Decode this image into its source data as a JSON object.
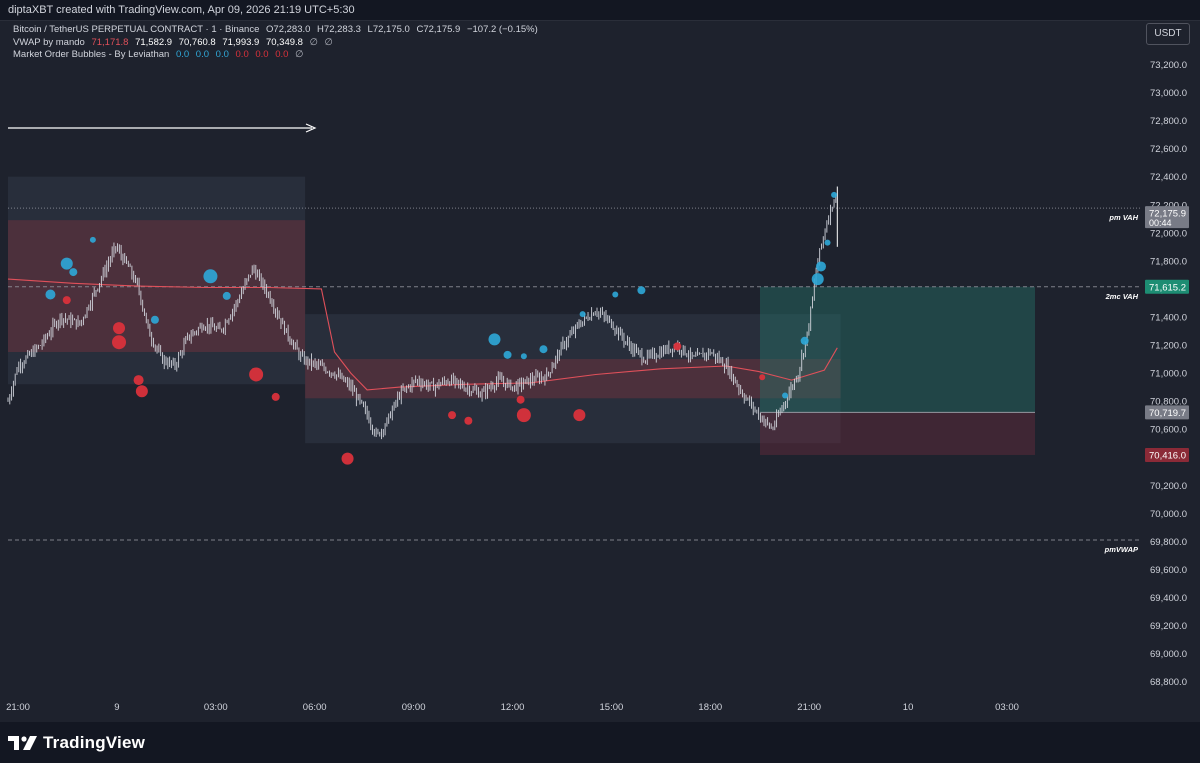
{
  "header": {
    "credit": "diptaXBT created with TradingView.com, Apr 09, 2026 21:19 UTC+5:30"
  },
  "legend": {
    "symbol": {
      "label": "Bitcoin / TetherUS PERPETUAL CONTRACT · 1 · Binance",
      "o_label": "O",
      "o": "72,283.0",
      "h_label": "H",
      "h": "72,283.3",
      "l_label": "L",
      "l": "72,175.0",
      "c_label": "C",
      "c": "72,175.9",
      "change": "−107.2 (−0.15%)"
    },
    "vwap": {
      "label": "VWAP by mando",
      "values": [
        "71,171.8",
        "71,582.9",
        "70,760.8",
        "71,993.9",
        "70,349.8",
        "∅",
        "∅"
      ]
    },
    "bubbles": {
      "label": "Market Order Bubbles - By Leviathan",
      "values": [
        "0.0",
        "0.0",
        "0.0",
        "0.0",
        "0.0",
        "0.0",
        "∅"
      ]
    }
  },
  "currency_button": "USDT",
  "brand": "TradingView",
  "colors": {
    "background": "#1e222d",
    "buy_bubble": "#2ea8d8",
    "sell_bubble": "#d9323b",
    "vwap_line": "#e0505a",
    "tp_zone": "#1f5e57",
    "sl_zone": "#4a2a35",
    "last_price_tag": "#787b86"
  },
  "chart_data": {
    "type": "candlestick",
    "title": "",
    "ylim": [
      68700,
      73350
    ],
    "y_ticks": [
      "73,200.0",
      "73,000.0",
      "72,800.0",
      "72,600.0",
      "72,400.0",
      "72,200.0",
      "72,000.0",
      "71,800.0",
      "71,600.0",
      "71,400.0",
      "71,200.0",
      "71,000.0",
      "70,800.0",
      "70,600.0",
      "70,400.0",
      "70,200.0",
      "70,000.0",
      "69,800.0",
      "69,600.0",
      "69,400.0",
      "69,200.0",
      "69,000.0",
      "68,800.0"
    ],
    "x_ticks": [
      "21:00",
      "9",
      "03:00",
      "06:00",
      "09:00",
      "12:00",
      "15:00",
      "18:00",
      "21:00",
      "10",
      "03:00"
    ],
    "grid": false,
    "levels": [
      {
        "label": "pm VAH",
        "price": 72175.9,
        "style": "dotted"
      },
      {
        "label": "2mc VAH",
        "price": 71615.2,
        "style": "dashed"
      },
      {
        "label": "pmVWAP",
        "price": 69810,
        "style": "dashed"
      }
    ],
    "price_tags": [
      {
        "label": "72,175.9",
        "sub": "00:44",
        "role": "last"
      },
      {
        "label": "71,615.2",
        "role": "take-profit"
      },
      {
        "label": "70,719.7",
        "role": "entry"
      },
      {
        "label": "70,416.0",
        "role": "stop-loss"
      }
    ],
    "position": {
      "entry": 70719.7,
      "take_profit": 71615.2,
      "stop_loss": 70416.0
    },
    "price_path": [
      [
        0,
        70800
      ],
      [
        0.3,
        71050
      ],
      [
        1,
        71200
      ],
      [
        1.6,
        71400
      ],
      [
        2.2,
        71350
      ],
      [
        2.8,
        71650
      ],
      [
        3.3,
        71900
      ],
      [
        3.7,
        71750
      ],
      [
        4,
        71600
      ],
      [
        4.3,
        71300
      ],
      [
        4.7,
        71100
      ],
      [
        5.1,
        71050
      ],
      [
        5.5,
        71250
      ],
      [
        6,
        71350
      ],
      [
        6.5,
        71300
      ],
      [
        7,
        71500
      ],
      [
        7.5,
        71750
      ],
      [
        8,
        71550
      ],
      [
        8.5,
        71300
      ],
      [
        9,
        71100
      ],
      [
        9.5,
        71050
      ],
      [
        10,
        71000
      ],
      [
        10.5,
        70900
      ],
      [
        11,
        70700
      ],
      [
        11.3,
        70550
      ],
      [
        11.6,
        70650
      ],
      [
        12,
        70850
      ],
      [
        12.5,
        70950
      ],
      [
        13,
        70900
      ],
      [
        13.5,
        70950
      ],
      [
        14,
        70900
      ],
      [
        14.5,
        70850
      ],
      [
        15,
        70950
      ],
      [
        15.5,
        70900
      ],
      [
        16,
        70950
      ],
      [
        16.5,
        70980
      ],
      [
        17,
        71200
      ],
      [
        17.5,
        71350
      ],
      [
        18,
        71450
      ],
      [
        18.5,
        71350
      ],
      [
        19,
        71200
      ],
      [
        19.5,
        71100
      ],
      [
        20,
        71150
      ],
      [
        20.5,
        71200
      ],
      [
        21,
        71100
      ],
      [
        21.5,
        71150
      ],
      [
        22,
        71050
      ],
      [
        22.5,
        70850
      ],
      [
        23,
        70700
      ],
      [
        23.4,
        70600
      ],
      [
        23.8,
        70800
      ],
      [
        24.2,
        71000
      ],
      [
        24.5,
        71300
      ],
      [
        24.8,
        71800
      ],
      [
        25.1,
        72100
      ],
      [
        25.3,
        72250
      ],
      [
        25.4,
        72180
      ]
    ],
    "vwap_path": [
      [
        0,
        71670
      ],
      [
        2,
        71640
      ],
      [
        4,
        71620
      ],
      [
        6,
        71610
      ],
      [
        8,
        71610
      ],
      [
        9.6,
        71600
      ],
      [
        10,
        71150
      ],
      [
        10.5,
        71000
      ],
      [
        11,
        70880
      ],
      [
        12,
        70900
      ],
      [
        14,
        70920
      ],
      [
        16,
        70930
      ],
      [
        18,
        70990
      ],
      [
        20,
        71030
      ],
      [
        22,
        71050
      ],
      [
        23,
        71010
      ],
      [
        24,
        70950
      ],
      [
        25,
        71020
      ],
      [
        25.4,
        71180
      ]
    ],
    "buy_bubbles": [
      [
        1.3,
        71560,
        5
      ],
      [
        1.8,
        71780,
        6
      ],
      [
        2.0,
        71720,
        4
      ],
      [
        2.6,
        71950,
        3
      ],
      [
        4.5,
        71380,
        4
      ],
      [
        6.2,
        71690,
        7
      ],
      [
        6.7,
        71550,
        4
      ],
      [
        14.9,
        71240,
        6
      ],
      [
        15.3,
        71130,
        4
      ],
      [
        15.8,
        71120,
        3
      ],
      [
        16.4,
        71170,
        4
      ],
      [
        17.6,
        71420,
        3
      ],
      [
        18.6,
        71560,
        3
      ],
      [
        19.4,
        71590,
        4
      ],
      [
        23.8,
        70840,
        3
      ],
      [
        24.4,
        71230,
        4
      ],
      [
        24.8,
        71670,
        6
      ],
      [
        24.9,
        71760,
        5
      ],
      [
        25.1,
        71930,
        3
      ],
      [
        25.3,
        72270,
        3
      ]
    ],
    "buy_bubbles_note": "each item: [x-time-index, price, radius-weight]",
    "sell_bubbles": [
      [
        1.8,
        71520,
        4
      ],
      [
        3.4,
        71320,
        6
      ],
      [
        3.4,
        71220,
        7
      ],
      [
        4.0,
        70950,
        5
      ],
      [
        4.1,
        70870,
        6
      ],
      [
        7.6,
        70990,
        7
      ],
      [
        8.2,
        70830,
        4
      ],
      [
        10.4,
        70390,
        6
      ],
      [
        13.6,
        70700,
        4
      ],
      [
        14.1,
        70660,
        4
      ],
      [
        15.7,
        70810,
        4
      ],
      [
        15.8,
        70700,
        7
      ],
      [
        17.5,
        70700,
        6
      ],
      [
        20.5,
        71190,
        4
      ],
      [
        23.1,
        70970,
        3
      ]
    ],
    "range_boxes": [
      {
        "x0": 0,
        "x1": 9.1,
        "lo": 70920,
        "hi": 72400,
        "shade": "outer"
      },
      {
        "x0": 0,
        "x1": 9.1,
        "lo": 71150,
        "hi": 72090,
        "shade": "inner"
      },
      {
        "x0": 9.1,
        "x1": 25.5,
        "lo": 70500,
        "hi": 71420,
        "shade": "outer"
      },
      {
        "x0": 9.1,
        "x1": 25.5,
        "lo": 70820,
        "hi": 71100,
        "shade": "inner"
      }
    ],
    "range_boxes_note": "x0/x1 are time indices on the same scale as price_path x (0 = first 21:00)"
  }
}
